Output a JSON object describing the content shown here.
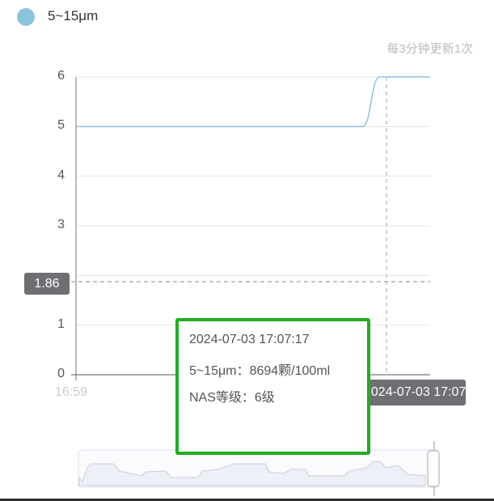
{
  "legend": {
    "label": "5~15μm",
    "color": "#8cc4df"
  },
  "note": "每3分钟更新1次",
  "chart_data": {
    "type": "line",
    "series": [
      {
        "name": "5~15μm",
        "values": [
          5,
          5,
          5,
          5,
          5,
          5,
          5,
          5,
          5,
          5,
          5,
          5,
          5,
          5,
          5,
          5,
          5,
          5,
          6,
          6,
          6,
          6
        ]
      }
    ],
    "x_tick_labels": [
      "16:59"
    ],
    "y_ticks": [
      0,
      1,
      2,
      3,
      4,
      5,
      6
    ],
    "y_tick_labels": [
      "0",
      "1",
      "",
      "3",
      "4",
      "5",
      "6"
    ],
    "ylim": [
      0,
      6
    ],
    "grid": true,
    "color": "#8cc4df",
    "crosshair": {
      "y_value": "1.86",
      "x_value": "2024-07-03 17:07:17"
    }
  },
  "tooltip": {
    "time": "2024-07-03 17:07:17",
    "value_line": "5~15μm：8694颗/100ml",
    "level_line": "NAS等级：6级"
  }
}
